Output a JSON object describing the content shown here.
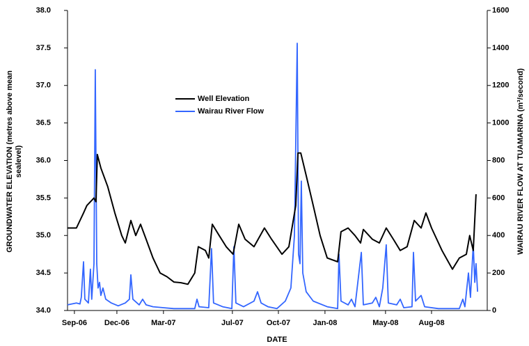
{
  "chart_data": {
    "type": "line",
    "x_label": "DATE",
    "y_label_lines": [
      "GROUNDWATER ELEVATION (metres above mean",
      "sealevel)"
    ],
    "y2_label": "WAIRAU RIVER FLOW AT TUAMARINA (m³/second)",
    "xlim": [
      2006.63,
      2008.883
    ],
    "xticks": [
      {
        "value": 2006.667,
        "label": "Sep-06"
      },
      {
        "value": 2006.895,
        "label": "Dec-06"
      },
      {
        "value": 2007.145,
        "label": "Mar-07"
      },
      {
        "value": 2007.515,
        "label": "Jul-07"
      },
      {
        "value": 2007.762,
        "label": "Oct-07"
      },
      {
        "value": 2008.012,
        "label": "Jan-08"
      },
      {
        "value": 2008.337,
        "label": "May-08"
      },
      {
        "value": 2008.584,
        "label": "Aug-08"
      }
    ],
    "ylim": [
      34,
      38
    ],
    "yticks": [
      {
        "value": 34,
        "label": "34.0"
      },
      34.5,
      {
        "value": 35,
        "label": "35.0"
      },
      35.5,
      {
        "value": 36,
        "label": "36.0"
      },
      36.5,
      {
        "value": 37,
        "label": "37.0"
      },
      37.5,
      {
        "value": 38,
        "label": "38.0"
      }
    ],
    "y2lim": [
      0,
      1600
    ],
    "y2ticks": [
      0,
      200,
      400,
      600,
      800,
      1000,
      1200,
      1400,
      1600
    ],
    "grid": false,
    "legend": "upper-left-center",
    "series": [
      {
        "name": "Well Elevation",
        "color": "#000000",
        "x": [
          2006.63,
          2006.678,
          2006.716,
          2006.734,
          2006.753,
          2006.772,
          2006.783,
          2006.79,
          2006.809,
          2006.846,
          2006.884,
          2006.921,
          2006.94,
          2006.97,
          2006.996,
          2007.022,
          2007.052,
          2007.089,
          2007.127,
          2007.164,
          2007.201,
          2007.239,
          2007.276,
          2007.313,
          2007.332,
          2007.37,
          2007.388,
          2007.407,
          2007.444,
          2007.482,
          2007.519,
          2007.549,
          2007.583,
          2007.631,
          2007.687,
          2007.725,
          2007.781,
          2007.818,
          2007.855,
          2007.867,
          2007.882,
          2007.911,
          2007.949,
          2007.986,
          2008.024,
          2008.08,
          2008.098,
          2008.136,
          2008.173,
          2008.203,
          2008.218,
          2008.266,
          2008.304,
          2008.341,
          2008.379,
          2008.416,
          2008.453,
          2008.491,
          2008.528,
          2008.554,
          2008.584,
          2008.64,
          2008.696,
          2008.733,
          2008.771,
          2008.789,
          2008.808,
          2008.823
        ],
        "values": [
          35.1,
          35.1,
          35.3,
          35.4,
          35.45,
          35.5,
          35.45,
          36.08,
          35.9,
          35.65,
          35.3,
          35.0,
          34.9,
          35.2,
          35.0,
          35.15,
          34.95,
          34.7,
          34.5,
          34.45,
          34.38,
          34.37,
          34.35,
          34.5,
          34.85,
          34.8,
          34.7,
          35.15,
          35.0,
          34.85,
          34.75,
          35.15,
          34.95,
          34.85,
          35.1,
          34.95,
          34.75,
          34.85,
          35.4,
          36.1,
          36.1,
          35.8,
          35.4,
          35.0,
          34.7,
          34.65,
          35.05,
          35.1,
          35.0,
          34.9,
          35.08,
          34.95,
          34.9,
          35.1,
          34.95,
          34.8,
          34.85,
          35.2,
          35.1,
          35.3,
          35.1,
          34.8,
          34.55,
          34.7,
          34.75,
          35.0,
          34.8,
          35.55
        ]
      },
      {
        "name": "Wairau River Flow",
        "color": "#3366ff",
        "axis": "y2",
        "x": [
          2006.63,
          2006.678,
          2006.697,
          2006.704,
          2006.716,
          2006.723,
          2006.742,
          2006.753,
          2006.76,
          2006.772,
          2006.779,
          2006.787,
          2006.794,
          2006.802,
          2006.809,
          2006.82,
          2006.835,
          2006.865,
          2006.902,
          2006.94,
          2006.962,
          2006.97,
          2006.981,
          2007.015,
          2007.033,
          2007.052,
          2007.089,
          2007.145,
          2007.201,
          2007.257,
          2007.313,
          2007.325,
          2007.336,
          2007.388,
          2007.403,
          2007.414,
          2007.463,
          2007.512,
          2007.523,
          2007.534,
          2007.575,
          2007.631,
          2007.65,
          2007.669,
          2007.706,
          2007.754,
          2007.799,
          2007.829,
          2007.848,
          2007.863,
          2007.87,
          2007.878,
          2007.885,
          2007.893,
          2007.911,
          2007.949,
          2008.024,
          2008.08,
          2008.087,
          2008.098,
          2008.136,
          2008.154,
          2008.173,
          2008.207,
          2008.218,
          2008.266,
          2008.285,
          2008.304,
          2008.322,
          2008.341,
          2008.352,
          2008.397,
          2008.416,
          2008.435,
          2008.479,
          2008.487,
          2008.498,
          2008.528,
          2008.547,
          2008.621,
          2008.733,
          2008.752,
          2008.763,
          2008.782,
          2008.793,
          2008.808,
          2008.816,
          2008.823,
          2008.831
        ],
        "values": [
          30,
          40,
          35,
          70,
          260,
          60,
          40,
          220,
          60,
          250,
          1284,
          250,
          120,
          150,
          80,
          120,
          60,
          40,
          25,
          40,
          60,
          190,
          60,
          30,
          60,
          30,
          20,
          15,
          10,
          10,
          10,
          60,
          20,
          15,
          330,
          40,
          20,
          10,
          340,
          40,
          20,
          50,
          100,
          40,
          20,
          10,
          50,
          120,
          400,
          1425,
          300,
          250,
          690,
          200,
          100,
          50,
          20,
          10,
          300,
          50,
          30,
          60,
          20,
          310,
          30,
          40,
          70,
          20,
          120,
          350,
          40,
          30,
          60,
          15,
          20,
          310,
          50,
          80,
          20,
          10,
          10,
          60,
          20,
          200,
          70,
          350,
          150,
          250,
          100
        ]
      }
    ]
  }
}
